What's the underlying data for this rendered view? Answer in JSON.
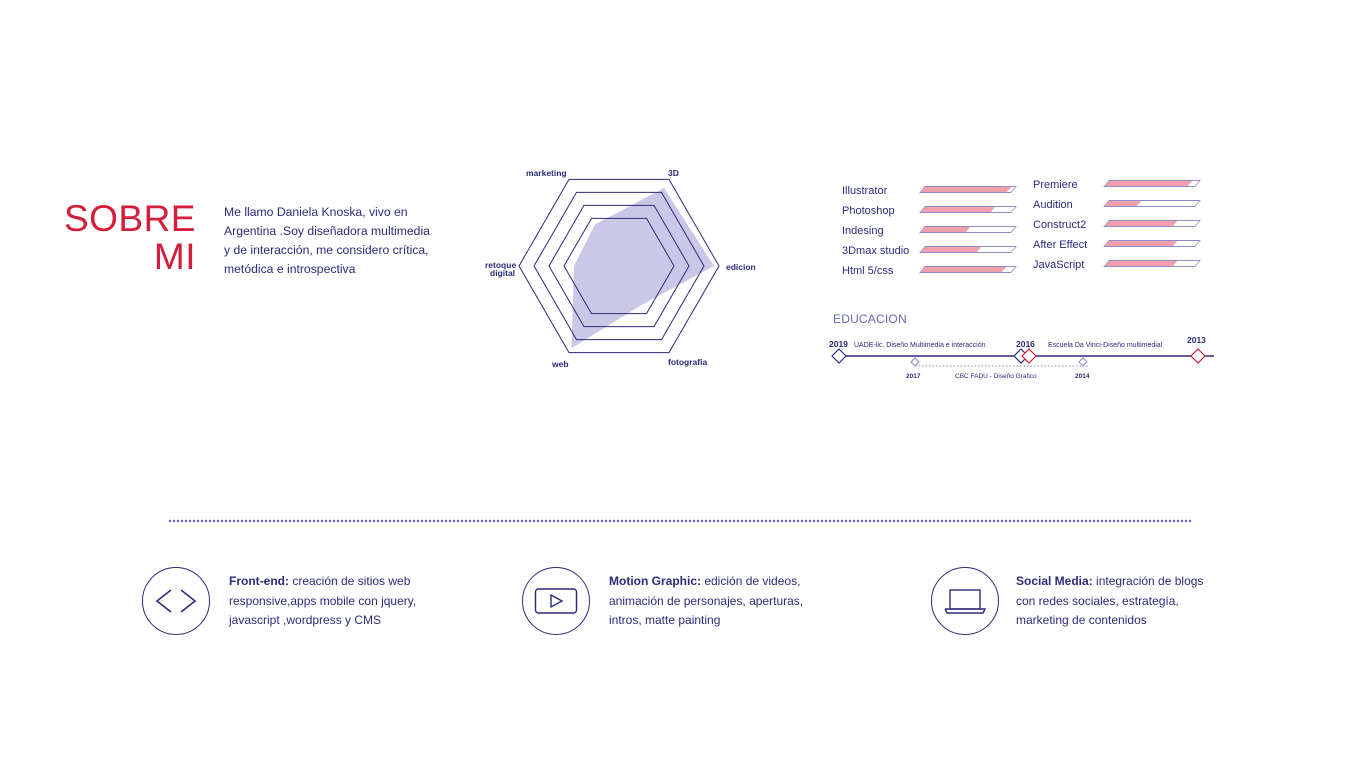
{
  "about": {
    "title_line1": "SOBRE",
    "title_line2": "MI",
    "bio": "Me llamo Daniela Knoska, vivo en Argentina .Soy diseñadora  multimedia y de interacción, me considero crítica, metódica e introspectiva"
  },
  "radar": {
    "axes": [
      "marketing",
      "3D",
      "edicion",
      "fotografia",
      "web",
      "retoque digital"
    ],
    "axis_label_retoque_line1": "retoque",
    "axis_label_retoque_line2": "digital",
    "values": [
      0.48,
      0.9,
      0.95,
      0.45,
      0.95,
      0.45
    ],
    "rings": 4
  },
  "skills_left": [
    {
      "name": "Illustrator",
      "level": 0.95
    },
    {
      "name": "Photoshop",
      "level": 0.78
    },
    {
      "name": "Indesing",
      "level": 0.5
    },
    {
      "name": "3Dmax studio",
      "level": 0.62
    },
    {
      "name": "Html 5/css",
      "level": 0.9
    }
  ],
  "skills_right": [
    {
      "name": "Premiere",
      "level": 0.92
    },
    {
      "name": "Audition",
      "level": 0.35
    },
    {
      "name": "Construct2",
      "level": 0.75
    },
    {
      "name": "After Effect",
      "level": 0.75
    },
    {
      "name": "JavaScript",
      "level": 0.75
    }
  ],
  "education": {
    "title": "EDUCACION",
    "y2019": "2019",
    "y2016": "2016",
    "y2013": "2013",
    "y2017": "2017",
    "y2014": "2014",
    "entry_uade": "UADE-lic. Diseño Multimedia e interacción",
    "entry_davinci": "Escuela Da Vinci-Diseño multimedial",
    "entry_cbc": "CBC FADU - Diseño Grafico"
  },
  "services": [
    {
      "icon": "code-icon",
      "title": "Front-end:",
      "text": " creación de sitios web responsive,apps mobile con jquery, javascript ,wordpress y CMS"
    },
    {
      "icon": "play-icon",
      "title": "Motion Graphic:",
      "text": " edición de videos, animación de personajes, aperturas, intros, matte painting"
    },
    {
      "icon": "laptop-icon",
      "title": "Social Media:",
      "text": " integración de blogs con redes sociales, estrategía, marketing de contenidos"
    }
  ],
  "colors": {
    "accent": "#d41d3b",
    "primary": "#2e2a7a",
    "radar_fill": "#b8b5dd",
    "bar_fill": "#f2a0ab"
  }
}
